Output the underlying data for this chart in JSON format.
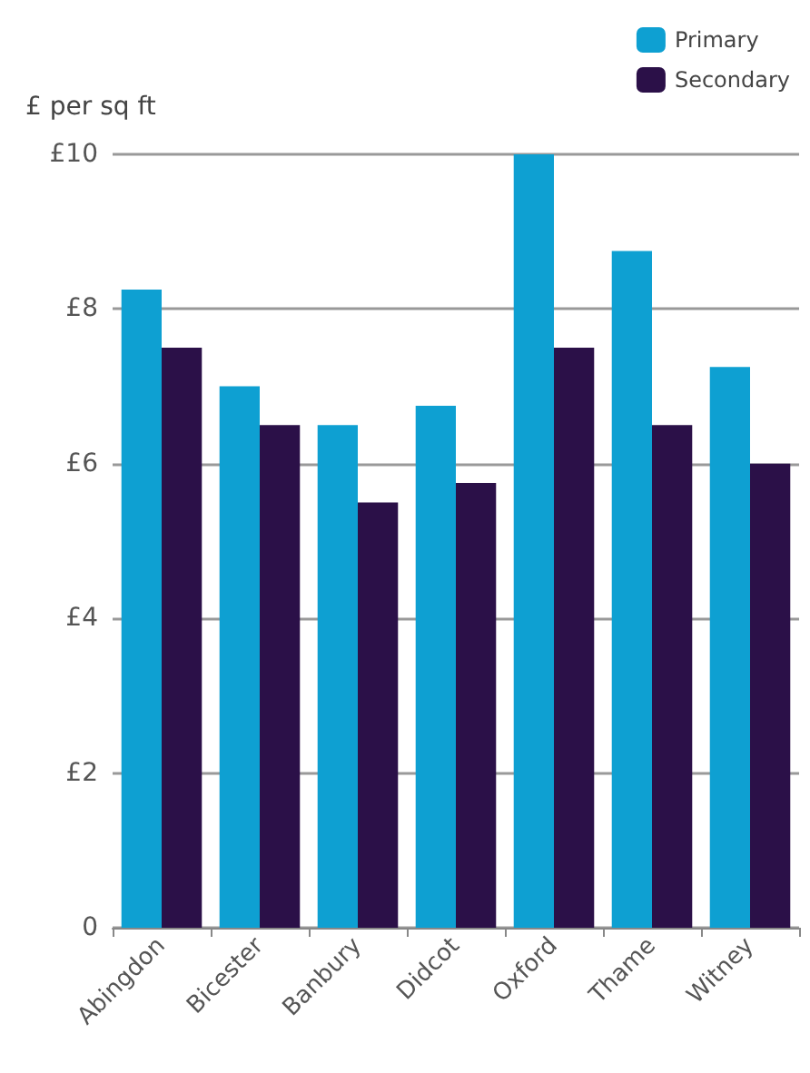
{
  "chart_data": {
    "type": "bar",
    "ylabel": "£ per sq ft",
    "categories": [
      "Abingdon",
      "Bicester",
      "Banbury",
      "Didcot",
      "Oxford",
      "Thame",
      "Witney"
    ],
    "series": [
      {
        "name": "Primary",
        "color": "#0ea0d2",
        "values": [
          8.25,
          7.0,
          6.5,
          6.75,
          10,
          8.75,
          7.25
        ]
      },
      {
        "name": "Secondary",
        "color": "#2b1048",
        "values": [
          7.5,
          6.5,
          5.5,
          5.75,
          7.5,
          6.5,
          6.0
        ]
      }
    ],
    "ylim": [
      0,
      10
    ],
    "yticks": [
      {
        "value": 0,
        "label": "0"
      },
      {
        "value": 2,
        "label": "£2"
      },
      {
        "value": 4,
        "label": "£4"
      },
      {
        "value": 6,
        "label": "£6"
      },
      {
        "value": 8,
        "label": "£8"
      },
      {
        "value": 10,
        "label": "£10"
      }
    ],
    "grid": "y",
    "legend": "top right"
  }
}
